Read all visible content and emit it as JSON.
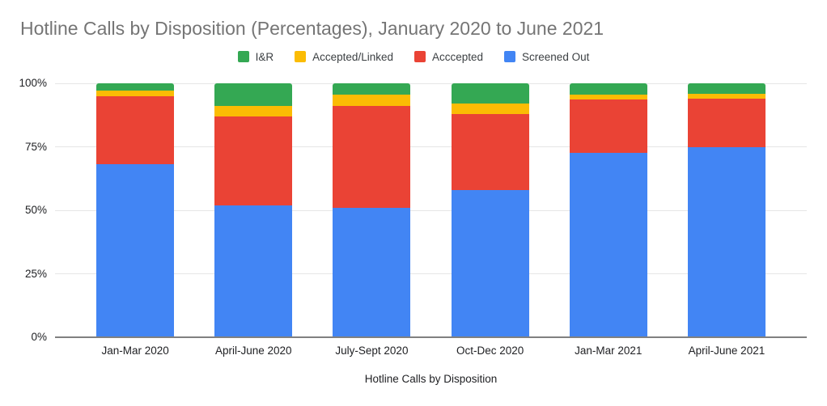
{
  "title": "Hotline Calls by Disposition (Percentages), January 2020 to June 2021",
  "legend": [
    {
      "label": "I&R",
      "color": "#34A853"
    },
    {
      "label": "Accepted/Linked",
      "color": "#FBBC04"
    },
    {
      "label": "Acccepted",
      "color": "#EA4335"
    },
    {
      "label": "Screened Out",
      "color": "#4285F4"
    }
  ],
  "colors": {
    "title_text": "#757575",
    "axis_text": "#202124",
    "gridline": "#e6e6e6",
    "baseline": "#808080",
    "background": "#ffffff"
  },
  "chart_data": {
    "type": "bar",
    "stacked": true,
    "percent_stacked": true,
    "title": "Hotline Calls by Disposition (Percentages), January 2020 to June 2021",
    "xlabel": "Hotline Calls by Disposition",
    "ylabel": "",
    "ylim": [
      0,
      100
    ],
    "y_ticks": [
      "0%",
      "25%",
      "50%",
      "75%",
      "100%"
    ],
    "grid": true,
    "legend_position": "top",
    "categories": [
      "Jan-Mar 2020",
      "April-June 2020",
      "July-Sept 2020",
      "Oct-Dec 2020",
      "Jan-Mar 2021",
      "April-June 2021"
    ],
    "series": [
      {
        "name": "Screened Out",
        "color": "#4285F4",
        "values": [
          68,
          52,
          51,
          58,
          72.5,
          75
        ]
      },
      {
        "name": "Acccepted",
        "color": "#EA4335",
        "values": [
          27,
          35,
          40,
          30,
          21,
          19
        ]
      },
      {
        "name": "Accepted/Linked",
        "color": "#FBBC04",
        "values": [
          2,
          4,
          4.5,
          4,
          2,
          2
        ]
      },
      {
        "name": "I&R",
        "color": "#34A853",
        "values": [
          3,
          9,
          4.5,
          8,
          4.5,
          4
        ]
      }
    ],
    "series_order_note": "series listed bottom-to-top of each stacked bar"
  }
}
